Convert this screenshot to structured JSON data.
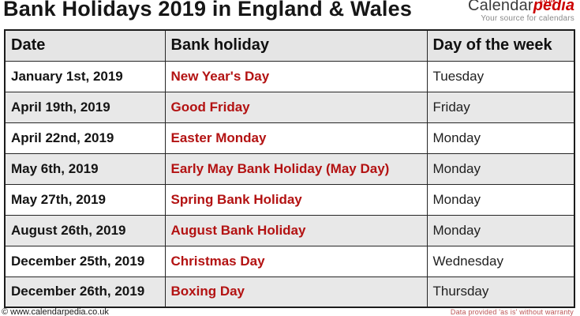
{
  "page": {
    "title": "Bank Holidays 2019 in England & Wales"
  },
  "logo": {
    "calendar": "Calendar",
    "pedia": "pedia",
    "couk": "co.uk",
    "tagline": "Your source for calendars"
  },
  "table": {
    "headers": [
      "Date",
      "Bank holiday",
      "Day of the week"
    ],
    "rows": [
      {
        "date": "January 1st, 2019",
        "holiday": "New Year's Day",
        "day": "Tuesday"
      },
      {
        "date": "April 19th, 2019",
        "holiday": "Good Friday",
        "day": "Friday"
      },
      {
        "date": "April 22nd, 2019",
        "holiday": "Easter Monday",
        "day": "Monday"
      },
      {
        "date": "May 6th, 2019",
        "holiday": "Early May Bank Holiday (May Day)",
        "day": "Monday"
      },
      {
        "date": "May 27th, 2019",
        "holiday": "Spring Bank Holiday",
        "day": "Monday"
      },
      {
        "date": "August 26th, 2019",
        "holiday": "August Bank Holiday",
        "day": "Monday"
      },
      {
        "date": "December 25th, 2019",
        "holiday": "Christmas Day",
        "day": "Wednesday"
      },
      {
        "date": "December 26th, 2019",
        "holiday": "Boxing Day",
        "day": "Thursday"
      }
    ]
  },
  "footer": {
    "left": "© www.calendarpedia.co.uk",
    "right": "Data provided 'as is' without warranty"
  },
  "colors": {
    "holiday_red": "#b31212",
    "logo_red": "#cc0000",
    "header_bg": "#e5e5e5",
    "row_alt_bg": "#e8e8e8",
    "border": "#1c1c1c"
  }
}
